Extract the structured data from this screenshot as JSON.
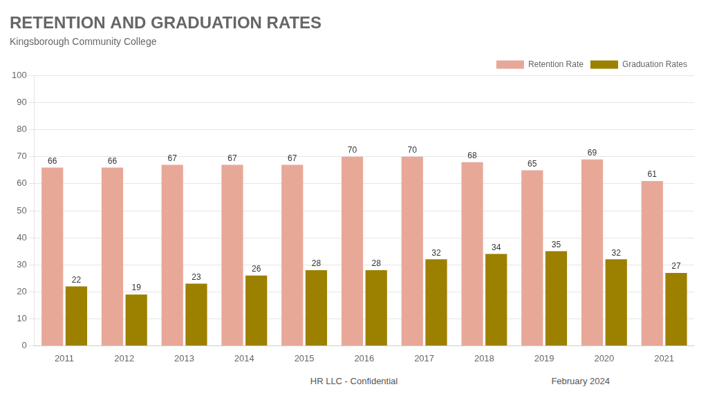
{
  "chart_data": {
    "type": "bar",
    "title": "RETENTION AND GRADUATION RATES",
    "subtitle": "Kingsborough Community College",
    "categories": [
      "2011",
      "2012",
      "2013",
      "2014",
      "2015",
      "2016",
      "2017",
      "2018",
      "2019",
      "2020",
      "2021"
    ],
    "series": [
      {
        "name": "Retention Rate",
        "color": "#E8A898",
        "values": [
          66,
          66,
          67,
          67,
          67,
          70,
          70,
          68,
          65,
          69,
          61
        ]
      },
      {
        "name": "Graduation Rates",
        "color": "#9C8000",
        "values": [
          22,
          19,
          23,
          26,
          28,
          28,
          32,
          34,
          35,
          32,
          27
        ]
      }
    ],
    "ylim": [
      0,
      100
    ],
    "yticks": [
      0,
      10,
      20,
      30,
      40,
      50,
      60,
      70,
      80,
      90,
      100
    ],
    "grid": true,
    "legend": "upper right",
    "data_labels": true,
    "annotations": [
      "HR LLC - Confidential",
      "February 2024"
    ]
  }
}
